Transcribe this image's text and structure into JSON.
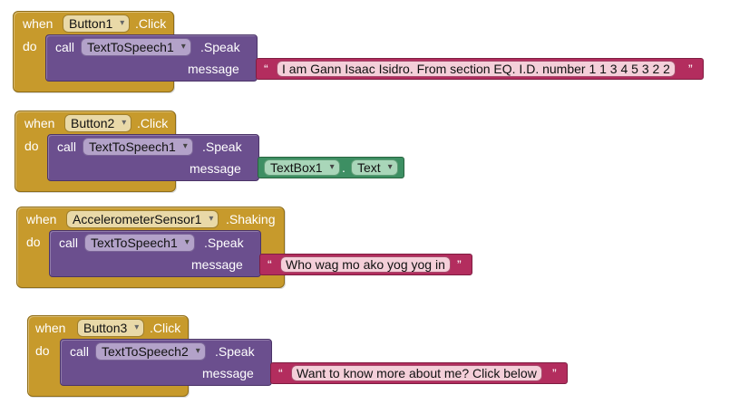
{
  "blocks": [
    {
      "when": "when",
      "component": "Button1",
      "event": ".Click",
      "do": "do",
      "call": "call",
      "target": "TextToSpeech1",
      "method": ".Speak",
      "param": "message",
      "text": "I am Gann Isaac Isidro. From section EQ. I.D. number 1 1 3 4 5 3 2 2"
    },
    {
      "when": "when",
      "component": "Button2",
      "event": ".Click",
      "do": "do",
      "call": "call",
      "target": "TextToSpeech1",
      "method": ".Speak",
      "param": "message",
      "getter_component": "TextBox1",
      "getter_property": "Text"
    },
    {
      "when": "when",
      "component": "AccelerometerSensor1",
      "event": ".Shaking",
      "do": "do",
      "call": "call",
      "target": "TextToSpeech1",
      "method": ".Speak",
      "param": "message",
      "text": "Who wag mo ako yog yog in"
    },
    {
      "when": "when",
      "component": "Button3",
      "event": ".Click",
      "do": "do",
      "call": "call",
      "target": "TextToSpeech2",
      "method": ".Speak",
      "param": "message",
      "text": "Want to know more about me? Click below"
    }
  ],
  "quote_open": "“",
  "quote_close": "”",
  "dot": ".",
  "colors": {
    "event": "#c79a2c",
    "call": "#6b4f8e",
    "text": "#b32d5e",
    "getter": "#3d8f63"
  }
}
